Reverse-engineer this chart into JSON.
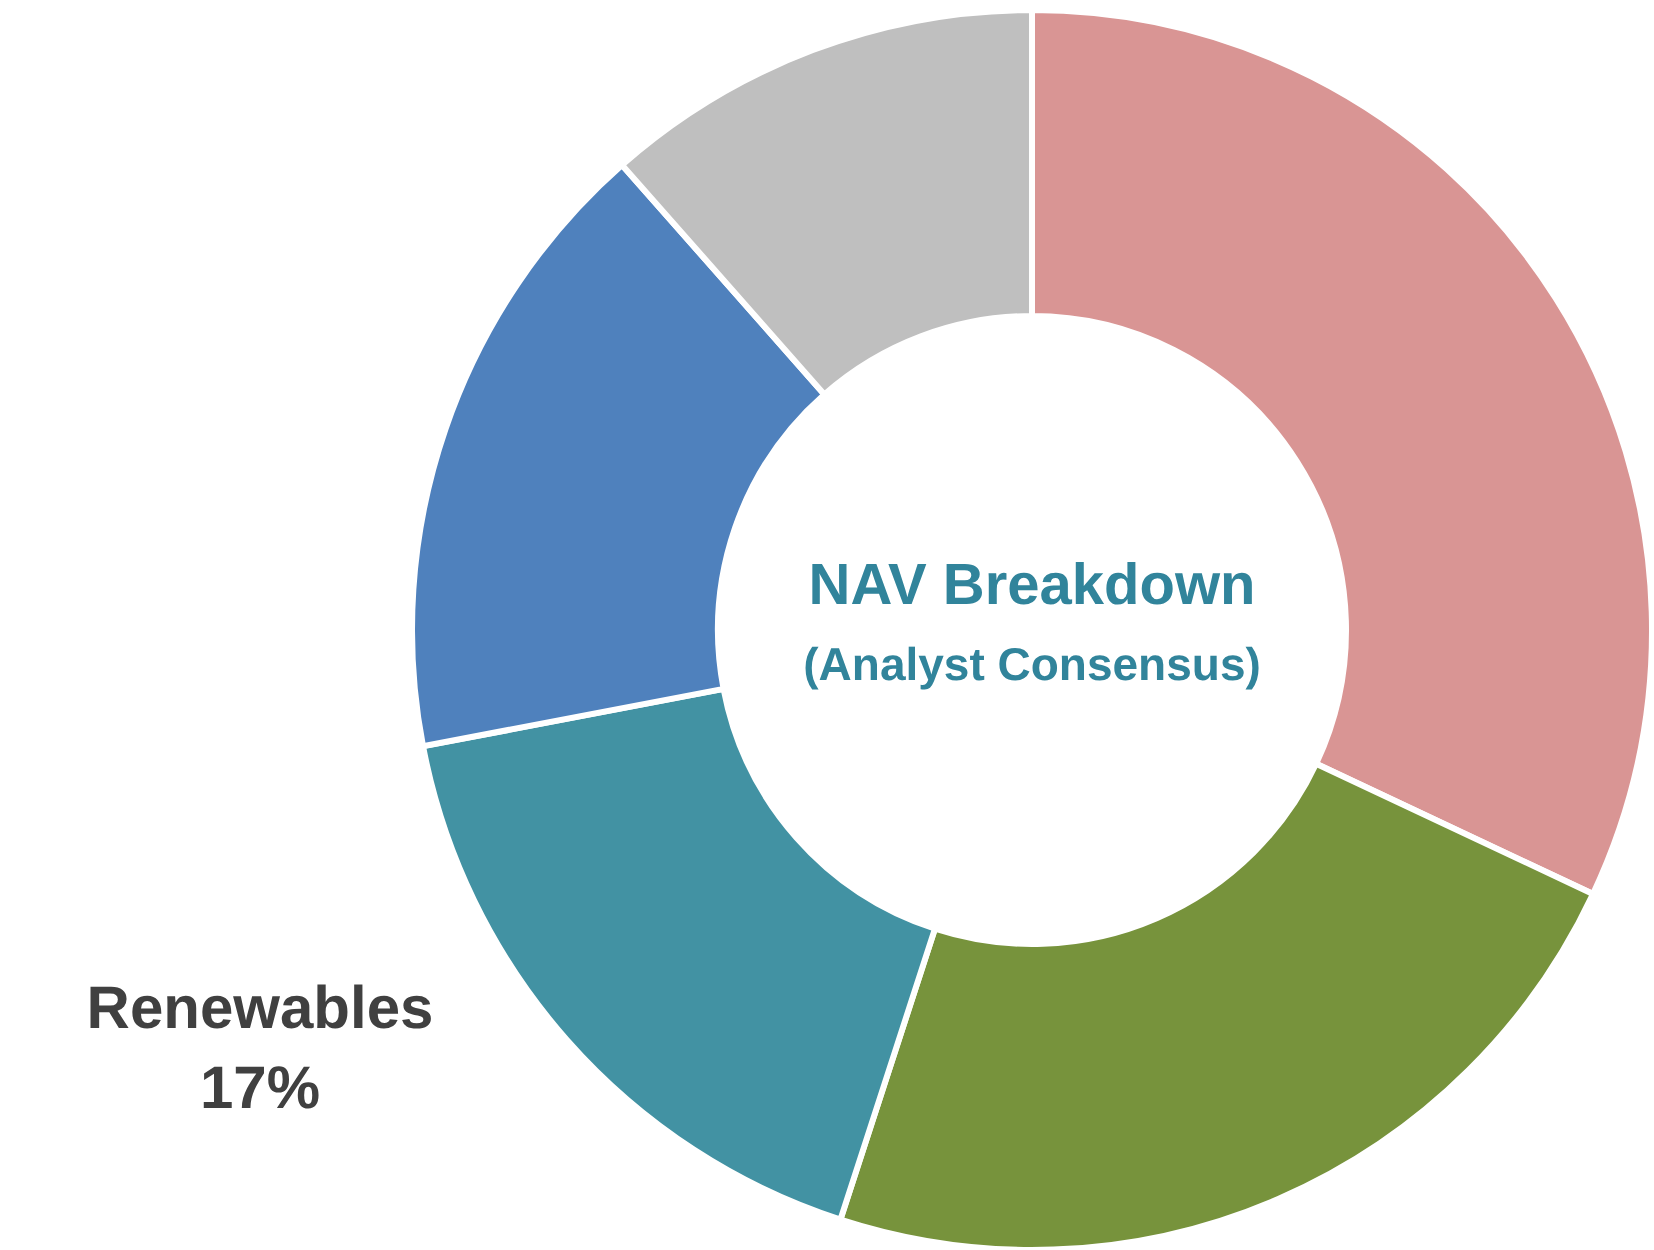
{
  "chart_data": {
    "type": "donut",
    "title": "NAV Breakdown",
    "subtitle": "(Analyst Consensus)",
    "categories": [
      null,
      null,
      "Renewables",
      null,
      null
    ],
    "values": [
      32,
      23,
      17,
      16.5,
      11.5
    ],
    "value_labels": [
      null,
      null,
      "17%",
      null,
      null
    ],
    "colors": [
      "#d99594",
      "#77933c",
      "#4292a3",
      "#4f81bd",
      "#bfbfbf"
    ]
  }
}
